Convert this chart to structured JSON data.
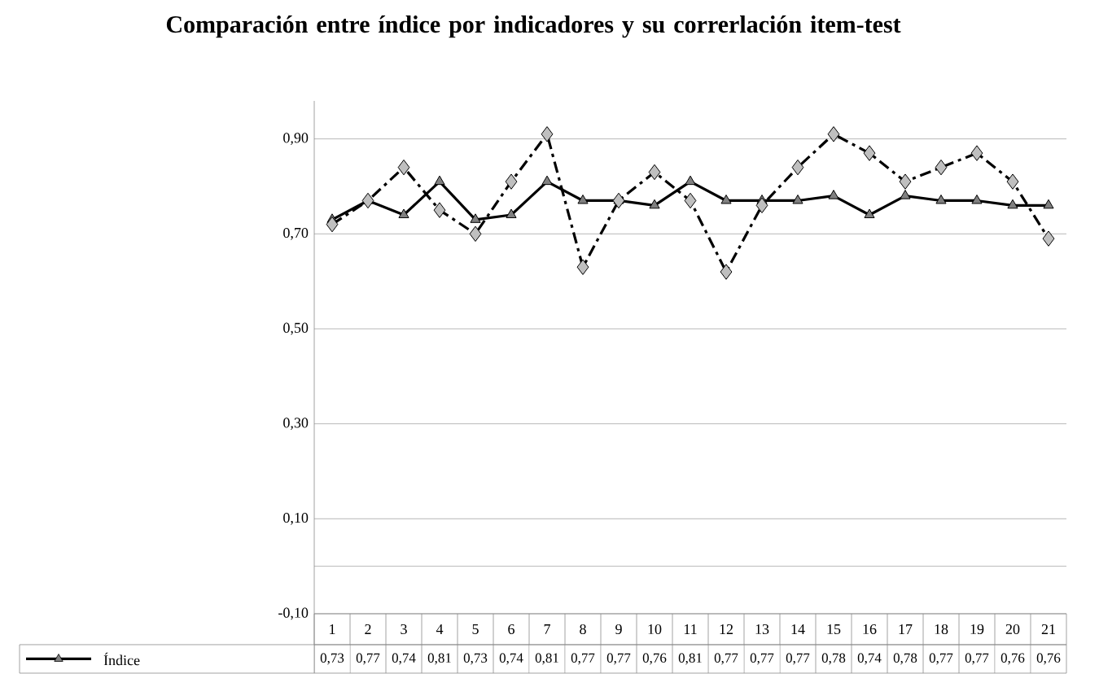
{
  "chart_data": {
    "type": "line",
    "title": "Comparación entre índice por indicadores y  su correrlación item-test",
    "categories": [
      "1",
      "2",
      "3",
      "4",
      "5",
      "6",
      "7",
      "8",
      "9",
      "10",
      "11",
      "12",
      "13",
      "14",
      "15",
      "16",
      "17",
      "18",
      "19",
      "20",
      "21"
    ],
    "series": [
      {
        "name": "Índice",
        "color": "#000000",
        "marker": "triangle",
        "line_style": "solid",
        "values": [
          0.73,
          0.77,
          0.74,
          0.81,
          0.73,
          0.74,
          0.81,
          0.77,
          0.77,
          0.76,
          0.81,
          0.77,
          0.77,
          0.77,
          0.78,
          0.74,
          0.78,
          0.77,
          0.77,
          0.76,
          0.76
        ],
        "value_labels": [
          "0,73",
          "0,77",
          "0,74",
          "0,81",
          "0,73",
          "0,74",
          "0,81",
          "0,77",
          "0,77",
          "0,76",
          "0,81",
          "0,77",
          "0,77",
          "0,77",
          "0,78",
          "0,74",
          "0,78",
          "0,77",
          "0,77",
          "0,76",
          "0,76"
        ]
      },
      {
        "color": "#000000",
        "marker": "diamond",
        "line_style": "dashed",
        "values": [
          0.72,
          0.77,
          0.84,
          0.75,
          0.7,
          0.81,
          0.91,
          0.63,
          0.77,
          0.83,
          0.77,
          0.62,
          0.76,
          0.84,
          0.91,
          0.87,
          0.81,
          0.84,
          0.87,
          0.81,
          0.69
        ]
      }
    ],
    "ylim": [
      -0.1,
      0.98
    ],
    "yticks": [
      {
        "value": -0.1,
        "label": "-0,10"
      },
      {
        "value": 0,
        "label": null
      },
      {
        "value": 0.1,
        "label": "0,10"
      },
      {
        "value": 0.3,
        "label": "0,30"
      },
      {
        "value": 0.5,
        "label": "0,50"
      },
      {
        "value": 0.7,
        "label": "0,70"
      },
      {
        "value": 0.9,
        "label": "0,90"
      }
    ],
    "grid": "y"
  }
}
